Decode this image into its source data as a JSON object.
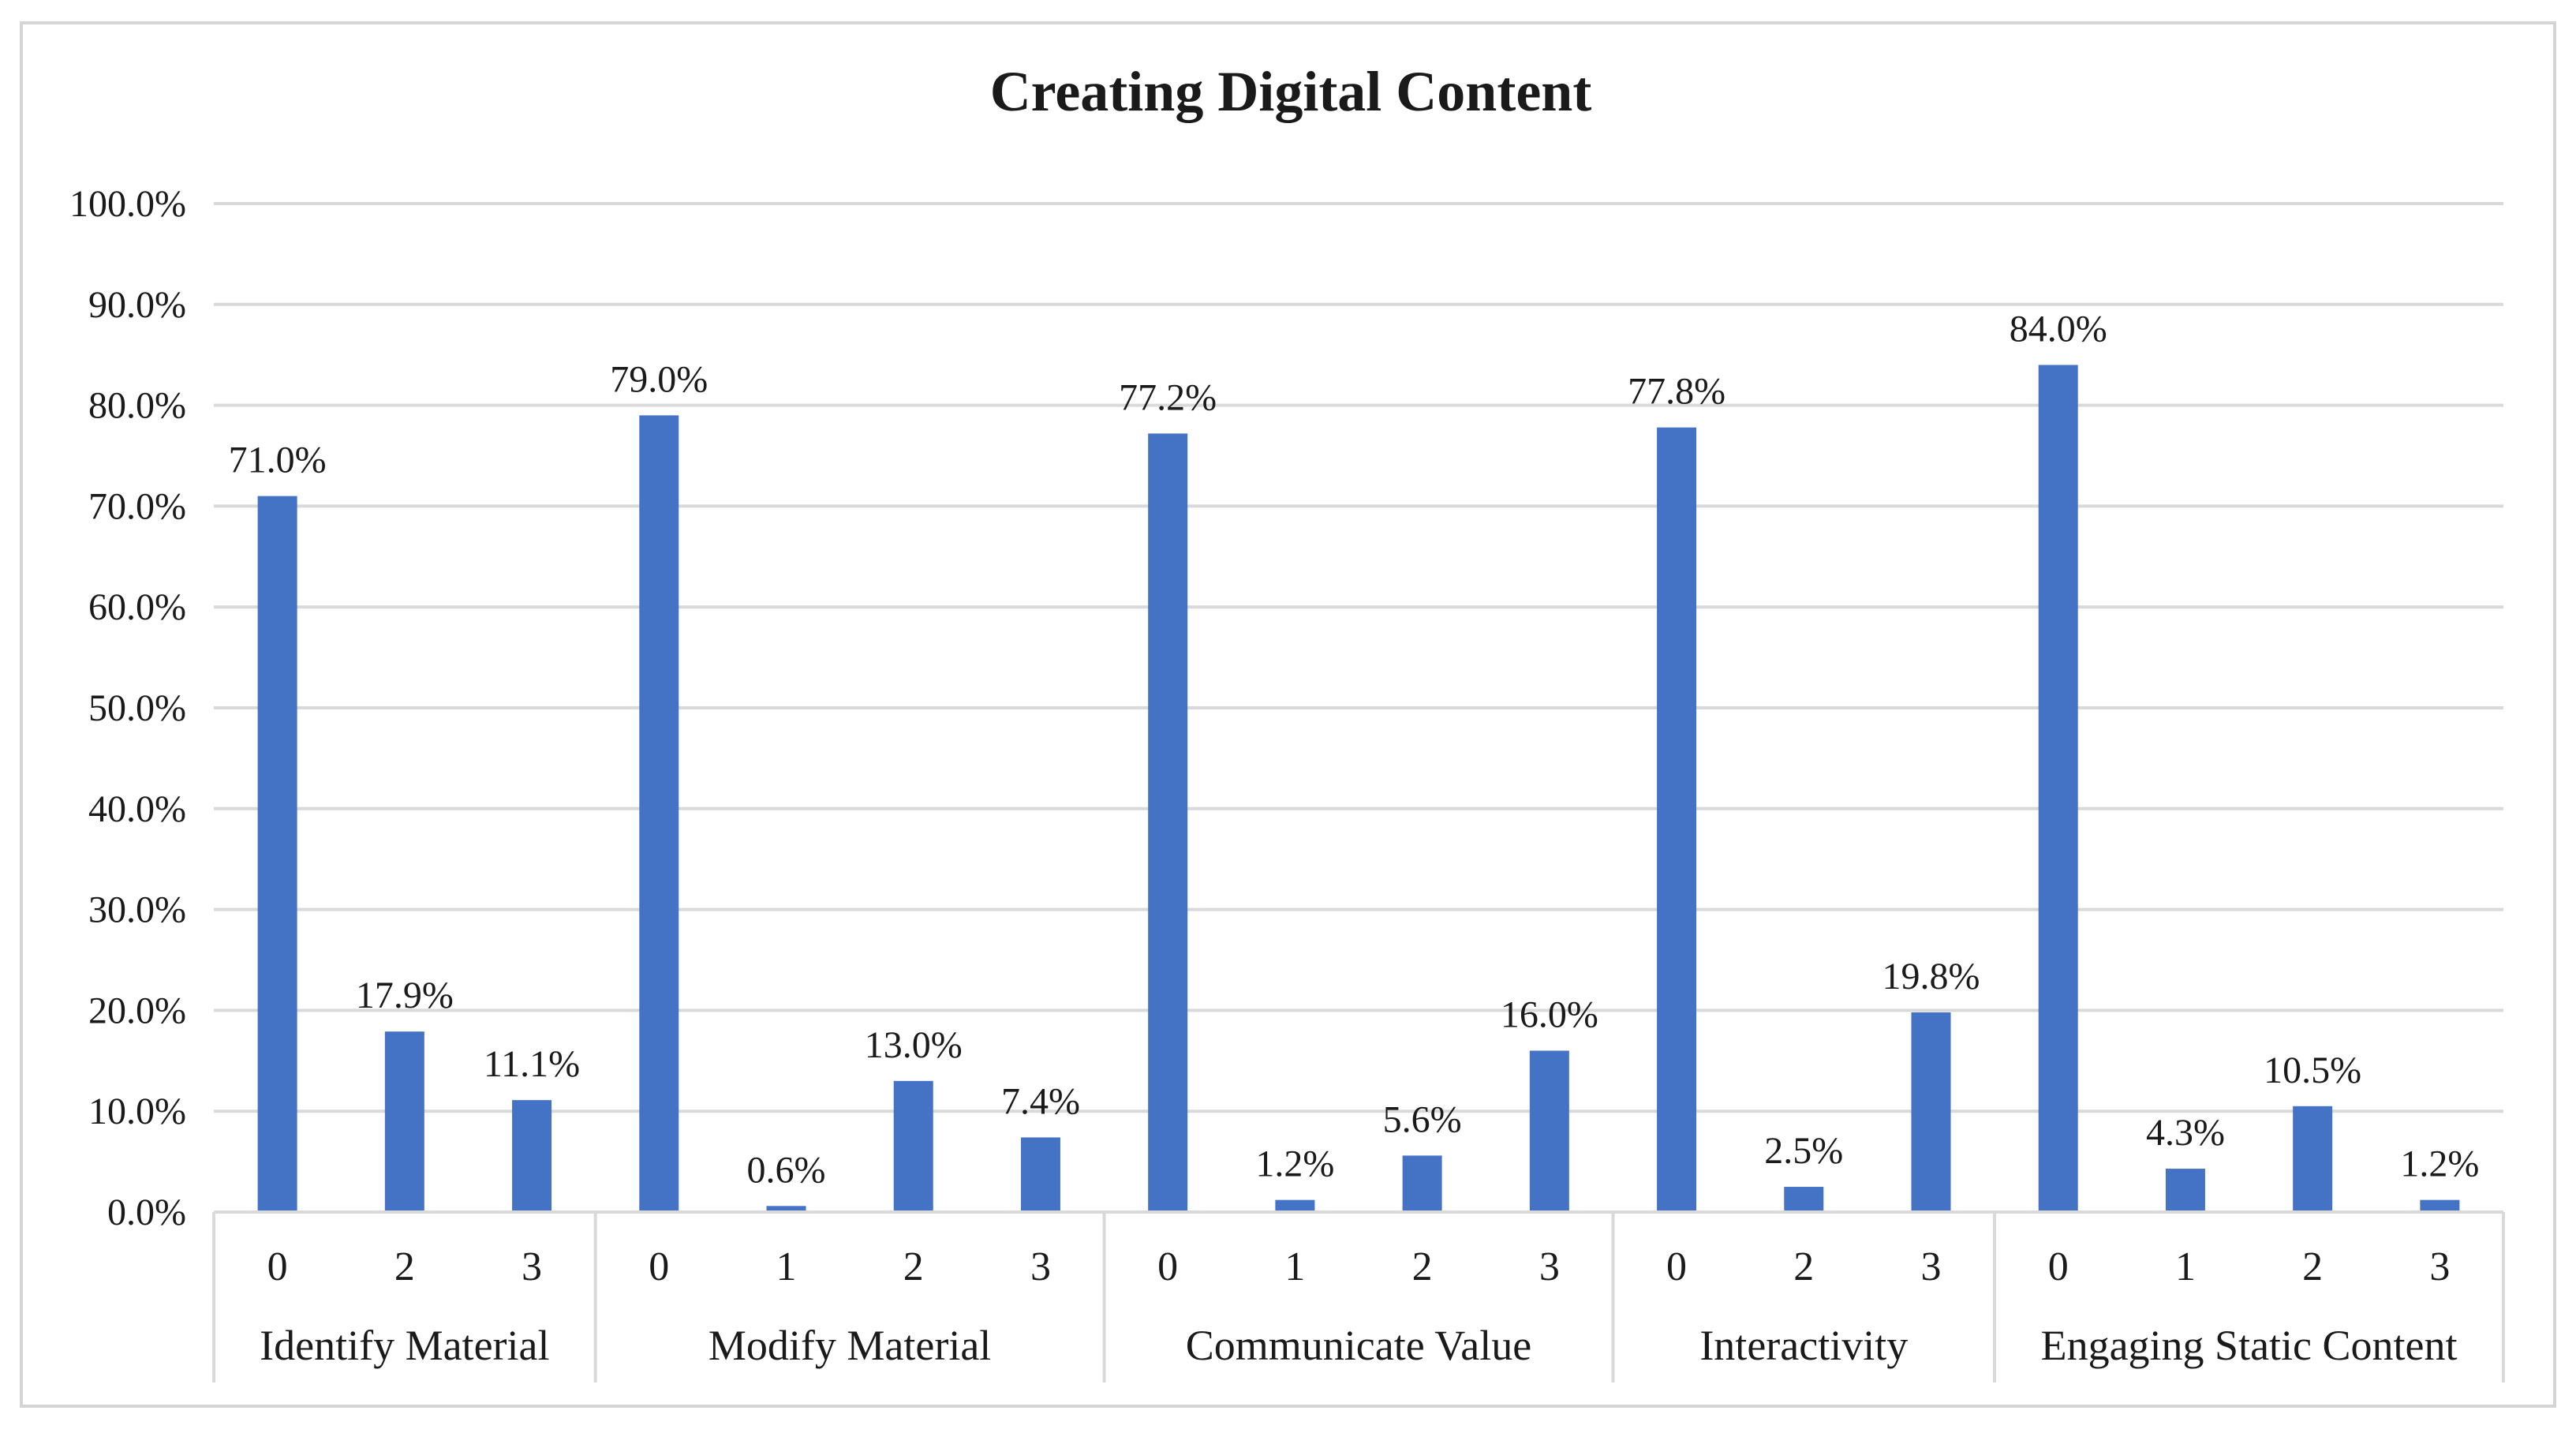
{
  "chart_data": {
    "type": "bar",
    "title": "Creating Digital Content",
    "xlabel": "",
    "ylabel": "",
    "ylim": [
      0,
      100
    ],
    "y_ticks": [
      0,
      10,
      20,
      30,
      40,
      50,
      60,
      70,
      80,
      90,
      100
    ],
    "y_tick_labels": [
      "0.0%",
      "10.0%",
      "20.0%",
      "30.0%",
      "40.0%",
      "50.0%",
      "60.0%",
      "70.0%",
      "80.0%",
      "90.0%",
      "100.0%"
    ],
    "grid": true,
    "legend": "none",
    "bar_color": "#4472c4",
    "groups": [
      {
        "name": "Identify Material",
        "categories": [
          "0",
          "2",
          "3"
        ],
        "values": [
          71.0,
          17.9,
          11.1
        ],
        "labels": [
          "71.0%",
          "17.9%",
          "11.1%"
        ]
      },
      {
        "name": "Modify Material",
        "categories": [
          "0",
          "1",
          "2",
          "3"
        ],
        "values": [
          79.0,
          0.6,
          13.0,
          7.4
        ],
        "labels": [
          "79.0%",
          "0.6%",
          "13.0%",
          "7.4%"
        ]
      },
      {
        "name": "Communicate Value",
        "categories": [
          "0",
          "1",
          "2",
          "3"
        ],
        "values": [
          77.2,
          1.2,
          5.6,
          16.0
        ],
        "labels": [
          "77.2%",
          "1.2%",
          "5.6%",
          "16.0%"
        ]
      },
      {
        "name": "Interactivity",
        "categories": [
          "0",
          "2",
          "3"
        ],
        "values": [
          77.8,
          2.5,
          19.8
        ],
        "labels": [
          "77.8%",
          "2.5%",
          "19.8%"
        ]
      },
      {
        "name": "Engaging Static Content",
        "categories": [
          "0",
          "1",
          "2",
          "3"
        ],
        "values": [
          84.0,
          4.3,
          10.5,
          1.2
        ],
        "labels": [
          "84.0%",
          "4.3%",
          "10.5%",
          "1.2%"
        ]
      }
    ]
  }
}
